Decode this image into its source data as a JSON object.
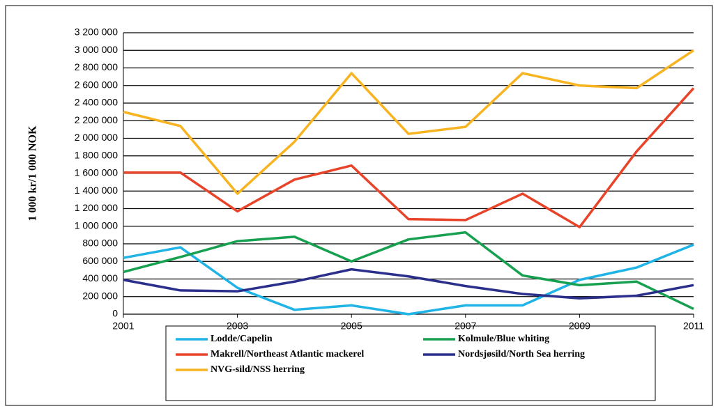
{
  "chart_data": {
    "type": "line",
    "y_label": "1 000 kr/1 000 NOK",
    "x": [
      2001,
      2002,
      2003,
      2004,
      2005,
      2006,
      2007,
      2008,
      2009,
      2010,
      2011
    ],
    "xlim": [
      2001,
      2011
    ],
    "xticks": [
      2001,
      2003,
      2005,
      2007,
      2009,
      2011
    ],
    "ylim": [
      0,
      3200000
    ],
    "yticks": [
      0,
      {
        "value": 200000,
        "label": "200 000"
      },
      {
        "value": 400000,
        "label": "400 000"
      },
      {
        "value": 600000,
        "label": "600 000"
      },
      {
        "value": 800000,
        "label": "800 000"
      },
      {
        "value": 1000000,
        "label": "1 000 000"
      },
      {
        "value": 1200000,
        "label": "1 200 000"
      },
      {
        "value": 1400000,
        "label": "1 400 000"
      },
      {
        "value": 1600000,
        "label": "1 600 000"
      },
      {
        "value": 1800000,
        "label": "1 800 000"
      },
      {
        "value": 2000000,
        "label": "2 000 000"
      },
      {
        "value": 2200000,
        "label": "2 200 000"
      },
      {
        "value": 2400000,
        "label": "2 400 000"
      },
      {
        "value": 2600000,
        "label": "2 600 000"
      },
      {
        "value": 2800000,
        "label": "2 800 000"
      },
      {
        "value": 3000000,
        "label": "3 000 000"
      },
      {
        "value": 3200000,
        "label": "3 200 000"
      }
    ],
    "grid": true,
    "series": [
      {
        "name": "Lodde/Capelin",
        "color": "#1fb3e6",
        "values": [
          640000,
          760000,
          300000,
          50000,
          100000,
          0,
          100000,
          100000,
          390000,
          530000,
          790000
        ]
      },
      {
        "name": "Kolmule/Blue whiting",
        "color": "#17a050",
        "values": [
          480000,
          650000,
          830000,
          880000,
          600000,
          850000,
          930000,
          440000,
          330000,
          370000,
          60000
        ]
      },
      {
        "name": "Makrell/Northeast Atlantic mackerel",
        "color": "#e8442a",
        "values": [
          1610000,
          1610000,
          1170000,
          1530000,
          1690000,
          1080000,
          1070000,
          1370000,
          990000,
          1850000,
          2570000
        ]
      },
      {
        "name": "Nordsjøsild/North Sea herring",
        "color": "#2b2f8c",
        "values": [
          390000,
          270000,
          260000,
          370000,
          510000,
          430000,
          320000,
          230000,
          180000,
          210000,
          330000
        ]
      },
      {
        "name": "NVG-sild/NSS herring",
        "color": "#f7b320",
        "values": [
          2300000,
          2140000,
          1370000,
          1960000,
          2740000,
          2050000,
          2130000,
          2740000,
          2600000,
          2570000,
          3000000
        ]
      }
    ]
  }
}
